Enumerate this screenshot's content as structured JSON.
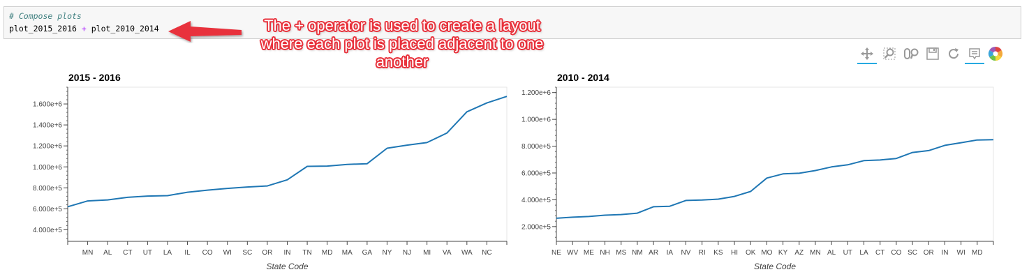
{
  "code": {
    "comment": "# Compose plots",
    "expr_left": "plot_2015_2016 ",
    "operator": "+",
    "expr_right": " plot_2010_2014"
  },
  "annotation": {
    "lines": [
      "The + operator is used to create a layout",
      "where each plot is placed adjacent to one",
      "another"
    ],
    "color": "#e8323c"
  },
  "toolbar": {
    "tools": [
      {
        "icon": "pan-icon",
        "active": true
      },
      {
        "icon": "box-zoom-icon",
        "active": false
      },
      {
        "icon": "wheel-zoom-icon",
        "active": false
      },
      {
        "icon": "save-icon",
        "active": false
      },
      {
        "icon": "reset-icon",
        "active": false
      },
      {
        "icon": "hover-icon",
        "active": true
      },
      {
        "icon": "bokeh-logo-icon",
        "active": false
      }
    ],
    "active_color": "#26aae1"
  },
  "chart_data": [
    {
      "type": "line",
      "title": "2015 - 2016",
      "xlabel": "State Code",
      "ylabel": "",
      "categories": [
        "",
        "MN",
        "AL",
        "CT",
        "UT",
        "LA",
        "IL",
        "CO",
        "WI",
        "SC",
        "OR",
        "IN",
        "TN",
        "MD",
        "MA",
        "GA",
        "NY",
        "NJ",
        "MI",
        "VA",
        "WA",
        "NC",
        ""
      ],
      "values": [
        620000,
        675000,
        685000,
        710000,
        722000,
        726000,
        758000,
        778000,
        795000,
        808000,
        818000,
        877000,
        1005000,
        1008000,
        1024000,
        1030000,
        1178000,
        1207000,
        1232000,
        1323000,
        1525000,
        1610000,
        1672000
      ],
      "ylim": [
        290000,
        1760000
      ],
      "yticks": [
        400000,
        600000,
        800000,
        1000000,
        1200000,
        1400000,
        1600000
      ],
      "ytick_labels": [
        "4.000e+5",
        "6.000e+5",
        "8.000e+5",
        "1.000e+6",
        "1.200e+6",
        "1.400e+6",
        "1.600e+6"
      ],
      "color": "#1f77b4",
      "grid": false
    },
    {
      "type": "line",
      "title": "2010 - 2014",
      "xlabel": "State Code",
      "ylabel": "",
      "categories": [
        "NE",
        "WV",
        "ME",
        "NH",
        "MS",
        "NM",
        "AR",
        "IA",
        "NV",
        "RI",
        "KS",
        "HI",
        "OK",
        "MO",
        "KY",
        "AZ",
        "MN",
        "AL",
        "UT",
        "LA",
        "CT",
        "CO",
        "SC",
        "OR",
        "IN",
        "WI",
        "MD",
        ""
      ],
      "values": [
        262000,
        270000,
        275000,
        285000,
        290000,
        300000,
        348000,
        352000,
        395000,
        398000,
        405000,
        425000,
        462000,
        562000,
        593000,
        598000,
        618000,
        645000,
        661000,
        692000,
        697000,
        708000,
        753000,
        767000,
        806000,
        826000,
        846000,
        848000
      ],
      "ylim": [
        90000,
        1240000
      ],
      "yticks": [
        200000,
        400000,
        600000,
        800000,
        1000000,
        1200000
      ],
      "ytick_labels": [
        "2.000e+5",
        "4.000e+5",
        "6.000e+5",
        "8.000e+5",
        "1.000e+6",
        "1.200e+6"
      ],
      "color": "#1f77b4",
      "grid": false
    }
  ]
}
